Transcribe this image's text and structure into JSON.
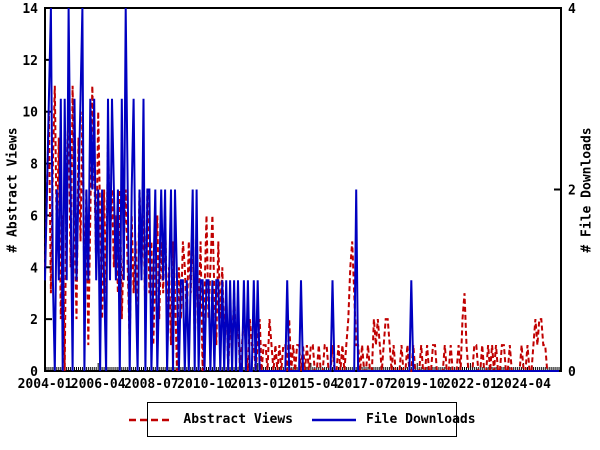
{
  "chart_data": {
    "type": "line",
    "title": "",
    "x_start": "2004-01",
    "months": 262,
    "x_major_tick_interval_months": 27,
    "x_major_tick_labels": [
      "2004-01",
      "2006-04",
      "2008-07",
      "2010-10",
      "2013-01",
      "2015-04",
      "2017-07",
      "2019-10",
      "2022-01",
      "2024-04"
    ],
    "left_axis": {
      "label": "# Abstract Views",
      "min": 0,
      "max": 14,
      "ticks": [
        0,
        2,
        4,
        6,
        8,
        10,
        12,
        14
      ]
    },
    "right_axis": {
      "label": "# File Downloads",
      "min": 0,
      "max": 4,
      "ticks": [
        0,
        2,
        4
      ]
    },
    "grid": false,
    "legend_position": "bottom-center",
    "series": [
      {
        "name": "Abstract Views",
        "axis": "left",
        "style": "dashed",
        "color": "#c00000",
        "values": [
          4,
          7,
          10,
          3,
          8,
          11,
          5,
          9,
          2,
          6,
          0,
          8,
          10,
          4,
          11,
          6,
          2,
          9,
          5,
          10,
          3,
          7,
          1,
          6,
          11,
          8,
          4,
          10,
          6,
          2,
          7,
          3,
          9,
          5,
          7,
          4,
          6,
          3,
          7,
          2,
          5,
          7,
          4,
          1,
          6,
          3,
          5,
          2,
          7,
          4,
          6,
          2,
          7,
          3,
          5,
          1,
          4,
          6,
          2,
          5,
          3,
          6,
          2,
          4,
          1,
          5,
          3,
          0,
          4,
          2,
          5,
          4,
          2,
          5,
          3,
          6,
          1,
          4,
          2,
          5,
          0,
          3,
          6,
          2,
          4,
          6,
          3,
          1,
          5,
          2,
          4,
          1,
          3,
          0,
          2,
          1,
          3,
          1,
          2,
          0,
          1,
          2,
          1,
          0,
          2,
          1,
          1,
          0,
          1,
          2,
          0,
          1,
          1,
          0,
          2,
          1,
          0,
          1,
          0,
          1,
          0,
          1,
          1,
          0,
          2,
          0,
          1,
          0,
          1,
          1,
          0,
          1,
          0,
          1,
          0,
          1,
          1,
          0,
          0,
          1,
          0,
          0,
          1,
          1,
          0,
          0,
          1,
          0,
          0,
          1,
          0,
          1,
          0,
          1,
          2,
          4,
          5,
          3,
          1,
          1,
          0,
          1,
          0,
          0,
          1,
          0,
          0,
          2,
          1,
          2,
          1,
          0,
          1,
          2,
          2,
          1,
          0,
          1,
          0,
          0,
          0,
          1,
          0,
          0,
          1,
          0,
          0,
          1,
          0,
          0,
          0,
          1,
          0,
          0,
          1,
          0,
          0,
          1,
          1,
          0,
          0,
          0,
          0,
          1,
          0,
          0,
          1,
          0,
          0,
          0,
          1,
          0,
          2,
          3,
          1,
          0,
          0,
          0,
          1,
          1,
          0,
          0,
          1,
          0,
          0,
          1,
          0,
          1,
          0,
          1,
          0,
          0,
          1,
          1,
          0,
          0,
          1,
          0,
          0,
          0,
          0,
          0,
          1,
          0,
          0,
          1,
          0,
          0,
          1,
          2,
          1,
          2,
          2,
          1,
          1,
          0,
          0,
          0,
          0,
          0,
          0,
          0
        ]
      },
      {
        "name": "File Downloads",
        "axis": "right",
        "style": "solid",
        "color": "#0000c0",
        "values": [
          1,
          2,
          3,
          4,
          1,
          0,
          2,
          1,
          3,
          0,
          3,
          1,
          4,
          2,
          0,
          3,
          1,
          2,
          3,
          4,
          0,
          2,
          1,
          3,
          2,
          3,
          1,
          2,
          0,
          2,
          1,
          0,
          3,
          1,
          3,
          2,
          1,
          2,
          0,
          3,
          1,
          4,
          2,
          0,
          2,
          3,
          1,
          0,
          2,
          1,
          3,
          0,
          2,
          2,
          0,
          1,
          2,
          0,
          1,
          2,
          1,
          2,
          0,
          1,
          2,
          0,
          2,
          1,
          0,
          1,
          1,
          0,
          1,
          0,
          1,
          2,
          0,
          2,
          0,
          1,
          1,
          0,
          1,
          1,
          0,
          1,
          0,
          1,
          1,
          0,
          1,
          0,
          1,
          0,
          1,
          0,
          1,
          0,
          1,
          0,
          0,
          1,
          0,
          1,
          0,
          0,
          1,
          0,
          1,
          0,
          0,
          0,
          0,
          0,
          0,
          0,
          0,
          0,
          0,
          0,
          0,
          0,
          0,
          1,
          0,
          0,
          0,
          0,
          0,
          0,
          1,
          0,
          0,
          0,
          0,
          0,
          0,
          0,
          0,
          0,
          0,
          0,
          0,
          0,
          0,
          0,
          1,
          0,
          0,
          0,
          0,
          0,
          0,
          0,
          0,
          0,
          0,
          0,
          2,
          0,
          0,
          0,
          0,
          0,
          0,
          0,
          0,
          0,
          0,
          0,
          0,
          0,
          0,
          0,
          0,
          0,
          0,
          0,
          0,
          0,
          0,
          0,
          0,
          0,
          0,
          0,
          1,
          0,
          0,
          0,
          0,
          0,
          0,
          0,
          0,
          0,
          0,
          0,
          0,
          0,
          0,
          0,
          0,
          0,
          0,
          0,
          0,
          0,
          0,
          0,
          0,
          0,
          0,
          0,
          0,
          0,
          0,
          0,
          0,
          0,
          0,
          0,
          0,
          0,
          0,
          0,
          0,
          0,
          0,
          0,
          0,
          0,
          0,
          0,
          0,
          0,
          0,
          0,
          0,
          0,
          0,
          0,
          0,
          0,
          0,
          0,
          0,
          0,
          0,
          0,
          0,
          0,
          0,
          0,
          0,
          0,
          0,
          0,
          0,
          0,
          0,
          0
        ]
      }
    ]
  },
  "colors": {
    "axis": "#000000",
    "background": "#ffffff"
  }
}
